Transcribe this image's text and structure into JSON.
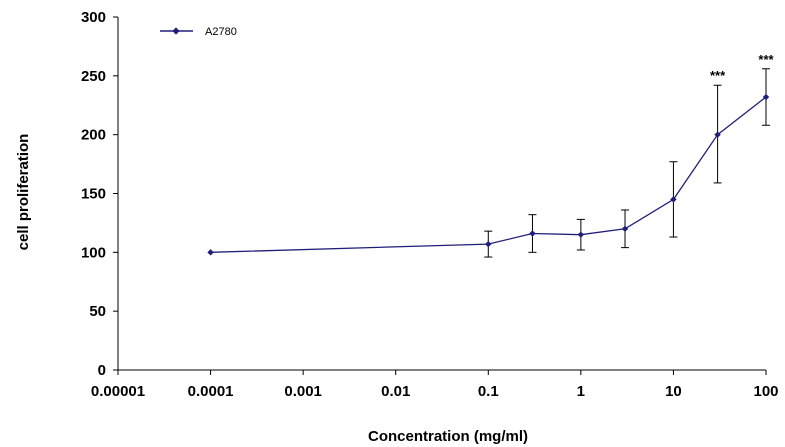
{
  "chart_data": {
    "type": "line",
    "x_scale": "log",
    "xlabel": "Concentration (mg/ml)",
    "ylabel": "cell proliferation",
    "xlim": [
      1e-05,
      100
    ],
    "ylim": [
      0,
      300
    ],
    "x_ticks": [
      1e-05,
      0.0001,
      0.001,
      0.01,
      0.1,
      1,
      10,
      100
    ],
    "x_tick_labels": [
      "0.00001",
      "0.0001",
      "0.001",
      "0.01",
      "0.1",
      "1",
      "10",
      "100"
    ],
    "y_ticks": [
      0,
      50,
      100,
      150,
      200,
      250,
      300
    ],
    "y_tick_labels": [
      "0",
      "50",
      "100",
      "150",
      "200",
      "250",
      "300"
    ],
    "grid": false,
    "legend": {
      "position": "top-left"
    },
    "series": [
      {
        "name": "A2780",
        "color": "#1f1f7a",
        "marker": "diamond",
        "x": [
          0.0001,
          0.1,
          0.3,
          1,
          3,
          10,
          30,
          100
        ],
        "y": [
          100,
          107,
          116,
          115,
          120,
          145,
          200,
          232
        ],
        "err_low": [
          100,
          96,
          100,
          102,
          104,
          113,
          159,
          208
        ],
        "err_high": [
          100,
          118,
          132,
          128,
          136,
          177,
          242,
          256
        ]
      }
    ],
    "annotations": [
      {
        "text": "***",
        "x": 30,
        "y": 242
      },
      {
        "text": "***",
        "x": 100,
        "y": 256
      }
    ]
  }
}
